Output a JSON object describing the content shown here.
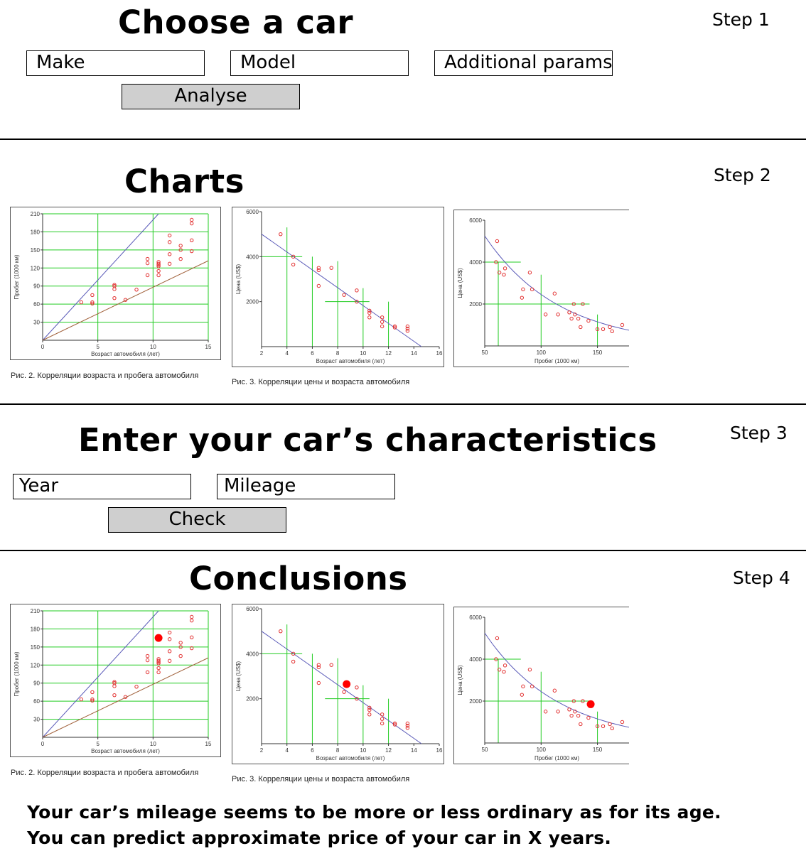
{
  "step1": {
    "title": "Choose a car",
    "step_label": "Step 1",
    "make_placeholder": "Make",
    "model_placeholder": "Model",
    "params_placeholder": "Additional params",
    "analyse_label": "Analyse"
  },
  "step2": {
    "title": "Charts",
    "step_label": "Step 2",
    "caption_age_mileage": "Рис. 2. Корреляции возраста и пробега автомобиля",
    "caption_price_age": "Рис. 3. Корреляции цены и возраста автомобиля"
  },
  "step3": {
    "title": "Enter your car’s characteristics",
    "step_label": "Step 3",
    "year_placeholder": "Year",
    "mileage_placeholder": "Mileage",
    "check_label": "Check"
  },
  "step4": {
    "title": "Conclusions",
    "step_label": "Step 4",
    "caption_age_mileage": "Рис. 2. Корреляции возраста и пробега автомобиля",
    "caption_price_age": "Рис. 3. Корреляции цены и возраста автомобиля",
    "line1": "Your car’s mileage seems to be more or less ordinary as for its age.",
    "line2": "You can predict approximate price of your car in X years."
  },
  "colors": {
    "grid_green": "#22cc22",
    "point_red": "#e23030",
    "highlight_red": "#ff0000",
    "regression_blue": "#5a5ab8",
    "regression_brown": "#a0603a",
    "button_gray": "#cfcfcf"
  },
  "chart_data": [
    {
      "id": "age-mileage",
      "type": "scatter",
      "title": "",
      "xlabel": "Возраст автомобиля (лет)",
      "ylabel": "Пробег (1000 км)",
      "xlim": [
        0,
        15
      ],
      "ylim": [
        0,
        210
      ],
      "xticks": [
        0,
        5,
        10,
        15
      ],
      "yticks": [
        30,
        60,
        90,
        120,
        150,
        180,
        210
      ],
      "grid": true,
      "lines": [
        {
          "name": "upper-bound",
          "color": "#5a5ab8",
          "x": [
            0,
            10.5
          ],
          "y": [
            0,
            210
          ]
        },
        {
          "name": "lower-bound",
          "color": "#a0603a",
          "x": [
            0,
            15
          ],
          "y": [
            0,
            132
          ]
        }
      ],
      "points": [
        [
          3.5,
          63
        ],
        [
          4.5,
          75
        ],
        [
          4.5,
          63
        ],
        [
          4.5,
          61
        ],
        [
          6.5,
          92
        ],
        [
          6.5,
          90
        ],
        [
          6.5,
          85
        ],
        [
          6.5,
          70
        ],
        [
          7.5,
          67
        ],
        [
          8.5,
          84
        ],
        [
          9.5,
          135
        ],
        [
          9.5,
          128
        ],
        [
          9.5,
          108
        ],
        [
          10.5,
          130
        ],
        [
          10.5,
          127
        ],
        [
          10.5,
          125
        ],
        [
          10.5,
          123
        ],
        [
          10.5,
          115
        ],
        [
          10.5,
          108
        ],
        [
          11.5,
          174
        ],
        [
          11.5,
          163
        ],
        [
          11.5,
          143
        ],
        [
          11.5,
          127
        ],
        [
          12.5,
          157
        ],
        [
          12.5,
          150
        ],
        [
          12.5,
          135
        ],
        [
          13.5,
          200
        ],
        [
          13.5,
          194
        ],
        [
          13.5,
          166
        ],
        [
          13.5,
          148
        ]
      ],
      "highlight": [
        10.5,
        165
      ]
    },
    {
      "id": "price-age",
      "type": "scatter",
      "title": "",
      "xlabel": "Возраст автомобиля (лет)",
      "ylabel": "Цена (US$)",
      "xlim": [
        2,
        16
      ],
      "ylim": [
        0,
        6000
      ],
      "xticks": [
        2,
        4,
        6,
        8,
        10,
        12,
        14,
        16
      ],
      "yticks": [
        2000,
        4000,
        6000
      ],
      "grid": true,
      "lines": [
        {
          "name": "trend",
          "color": "#5a5ab8",
          "x": [
            2,
            14.6
          ],
          "y": [
            5000,
            0
          ]
        }
      ],
      "points": [
        [
          3.5,
          5000
        ],
        [
          4.5,
          4000
        ],
        [
          4.5,
          3650
        ],
        [
          6.5,
          3500
        ],
        [
          6.5,
          3400
        ],
        [
          6.5,
          2700
        ],
        [
          7.5,
          3500
        ],
        [
          8.5,
          2300
        ],
        [
          9.5,
          2500
        ],
        [
          9.5,
          2000
        ],
        [
          10.5,
          1600
        ],
        [
          10.5,
          1500
        ],
        [
          10.5,
          1300
        ],
        [
          11.5,
          1300
        ],
        [
          11.5,
          1100
        ],
        [
          11.5,
          900
        ],
        [
          12.5,
          900
        ],
        [
          12.5,
          850
        ],
        [
          13.5,
          900
        ],
        [
          13.5,
          800
        ],
        [
          13.5,
          700
        ]
      ],
      "highlight": [
        8.7,
        2650
      ]
    },
    {
      "id": "price-mileage",
      "type": "scatter",
      "title": "",
      "xlabel": "Пробег (1000 км)",
      "ylabel": "Цена (US$)",
      "xlim": [
        50,
        178
      ],
      "ylim": [
        0,
        6000
      ],
      "xticks": [
        50,
        100,
        150
      ],
      "yticks": [
        2000,
        4000,
        6000
      ],
      "grid": true,
      "lines": [
        {
          "name": "trend",
          "color": "#5a5ab8",
          "curve": "exp",
          "x0": 50,
          "x1": 178,
          "y0": 5250,
          "y1": 750
        }
      ],
      "points": [
        [
          61,
          5000
        ],
        [
          60,
          4000
        ],
        [
          63,
          3500
        ],
        [
          67,
          3400
        ],
        [
          68,
          3700
        ],
        [
          83,
          2300
        ],
        [
          84,
          2700
        ],
        [
          90,
          3500
        ],
        [
          92,
          2700
        ],
        [
          104,
          1500
        ],
        [
          112,
          2500
        ],
        [
          115,
          1500
        ],
        [
          125,
          1600
        ],
        [
          127,
          1300
        ],
        [
          129,
          2000
        ],
        [
          130,
          1500
        ],
        [
          133,
          1300
        ],
        [
          135,
          900
        ],
        [
          137,
          2000
        ],
        [
          142,
          1200
        ],
        [
          150,
          800
        ],
        [
          155,
          800
        ],
        [
          161,
          900
        ],
        [
          163,
          700
        ],
        [
          172,
          1000
        ]
      ],
      "highlight": [
        144,
        1850
      ]
    }
  ]
}
